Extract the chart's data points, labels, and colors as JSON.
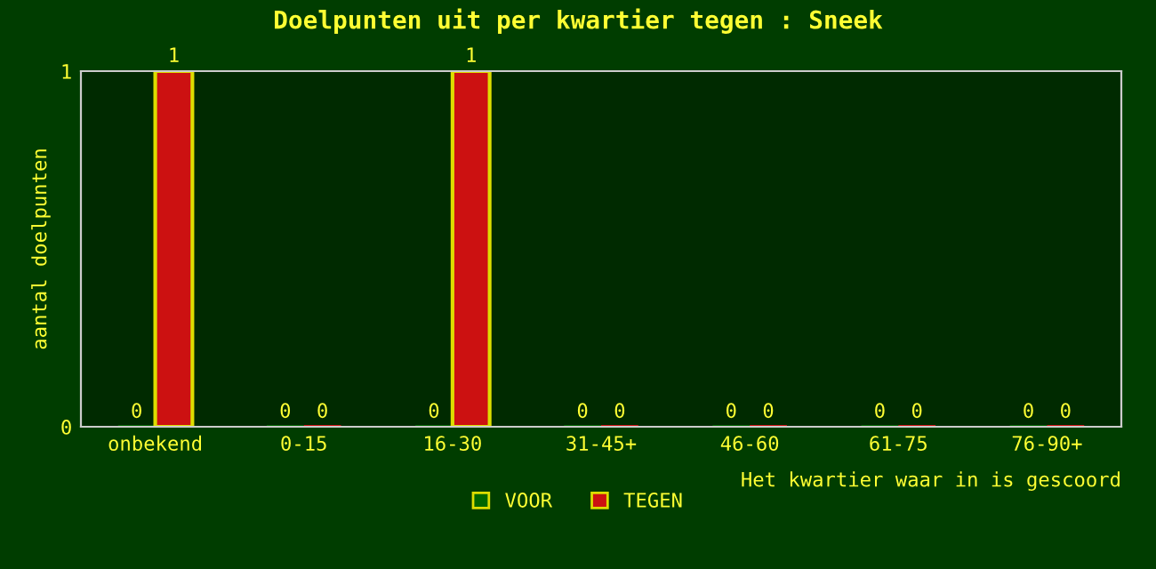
{
  "chart_data": {
    "type": "bar",
    "title": "Doelpunten uit per kwartier tegen : Sneek",
    "xlabel": "Het kwartier waar in is gescoord",
    "ylabel": "aantal doelpunten",
    "categories": [
      "onbekend",
      "0-15",
      "16-30",
      "31-45+",
      "46-60",
      "61-75",
      "76-90+"
    ],
    "series": [
      {
        "name": "VOOR",
        "color": "#006600",
        "values": [
          0,
          0,
          0,
          0,
          0,
          0,
          0
        ]
      },
      {
        "name": "TEGEN",
        "color": "#cc1111",
        "values": [
          1,
          0,
          1,
          0,
          0,
          0,
          0
        ]
      }
    ],
    "ylim": [
      0,
      1
    ],
    "yticks": [
      0,
      1
    ],
    "data_labels": true,
    "legend": "bottom",
    "grid": false
  }
}
